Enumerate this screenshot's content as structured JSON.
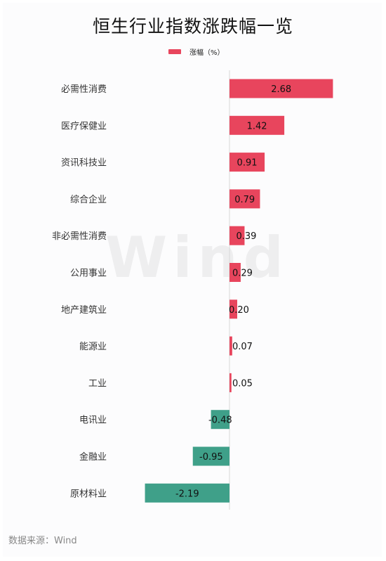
{
  "title": "恒生行业指数涨跌幅一览",
  "source": "数据来源：Wind",
  "watermark": "Wind",
  "colors": {
    "positive": "#e8455d",
    "negative": "#3fa089"
  },
  "chart_data": {
    "type": "bar",
    "orientation": "horizontal",
    "legend": "top-center",
    "legend_label": "涨幅（%）",
    "grid": false,
    "categories": [
      "必需性消费",
      "医疗保健业",
      "资讯科技业",
      "综合企业",
      "非必需性消费",
      "公用事业",
      "地产建筑业",
      "能源业",
      "工业",
      "电讯业",
      "金融业",
      "原材料业"
    ],
    "series": [
      {
        "name": "涨幅（%）",
        "values": [
          2.68,
          1.42,
          0.91,
          0.79,
          0.39,
          0.29,
          0.2,
          0.07,
          0.05,
          -0.48,
          -0.95,
          -2.19
        ]
      }
    ],
    "value_labels": [
      "2.68",
      "1.42",
      "0.91",
      "0.79",
      "0.39",
      "0.29",
      "0.20",
      "0.07",
      "0.05",
      "-0.48",
      "-0.95",
      "-2.19"
    ],
    "xlim": [
      -2.19,
      2.68
    ]
  }
}
